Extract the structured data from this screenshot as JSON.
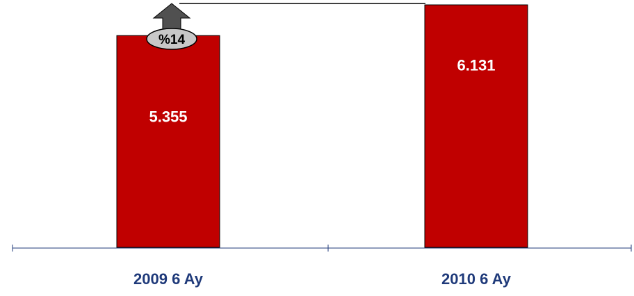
{
  "chart_data": {
    "type": "bar",
    "categories": [
      "2009 6 Ay",
      "2010 6 Ay"
    ],
    "values": [
      5355,
      6131
    ],
    "value_labels": [
      "5.355",
      "6.131"
    ],
    "growth_label": "%14",
    "colors": {
      "bar": "#C00000",
      "bar_outline": "#000000",
      "axis": "#1F3A7A",
      "category_text": "#1F3A7A",
      "value_text": "#FFFFFF",
      "arrow": "#505050",
      "badge_fill": "#C8C8C8",
      "badge_stroke": "#000000"
    },
    "title": "",
    "xlabel": "",
    "ylabel": "",
    "grid": false,
    "legend": "none"
  }
}
